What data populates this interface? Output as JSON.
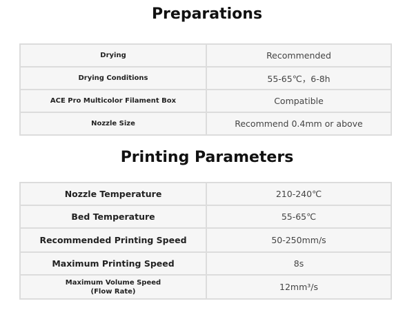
{
  "preparations": {
    "title": "Preparations",
    "rows": [
      {
        "label": "Drying",
        "value": "Recommended"
      },
      {
        "label": "Drying Conditions",
        "value": "55-65℃，6-8h"
      },
      {
        "label": "ACE Pro Multicolor Filament Box",
        "value": "Compatible"
      },
      {
        "label": "Nozzle Size",
        "value": "Recommend 0.4mm or above"
      }
    ]
  },
  "printing": {
    "title": "Printing Parameters",
    "rows": [
      {
        "label": "Nozzle Temperature",
        "value": "210-240℃"
      },
      {
        "label": "Bed Temperature",
        "value": "55-65℃"
      },
      {
        "label": "Recommended Printing Speed",
        "value": "50-250mm/s"
      },
      {
        "label": "Maximum Printing Speed",
        "value": "8s"
      },
      {
        "label": "Maximum Volume Speed",
        "label2": "(Flow Rate)",
        "value": "12mm³/s"
      }
    ]
  }
}
